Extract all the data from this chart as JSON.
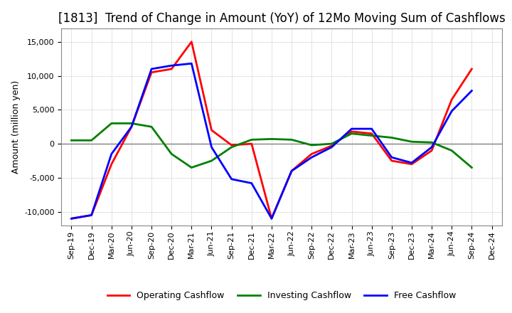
{
  "title": "[1813]  Trend of Change in Amount (YoY) of 12Mo Moving Sum of Cashflows",
  "ylabel": "Amount (million yen)",
  "ylim": [
    -12000,
    17000
  ],
  "yticks": [
    -10000,
    -5000,
    0,
    5000,
    10000,
    15000
  ],
  "background_color": "#ffffff",
  "plot_bg_color": "#ffffff",
  "grid_color": "#aaaaaa",
  "dates": [
    "Sep-19",
    "Dec-19",
    "Mar-20",
    "Jun-20",
    "Sep-20",
    "Dec-20",
    "Mar-21",
    "Jun-21",
    "Sep-21",
    "Dec-21",
    "Mar-22",
    "Jun-22",
    "Sep-22",
    "Dec-22",
    "Mar-23",
    "Jun-23",
    "Sep-23",
    "Dec-23",
    "Mar-24",
    "Jun-24",
    "Sep-24",
    "Dec-24"
  ],
  "operating": [
    -11000,
    -10500,
    -3000,
    2500,
    10500,
    11000,
    15000,
    2000,
    -200,
    0,
    -11000,
    -4000,
    -1500,
    -300,
    1800,
    1500,
    -2500,
    -3000,
    -1000,
    6500,
    11000,
    null
  ],
  "investing": [
    500,
    500,
    3000,
    3000,
    2500,
    -1500,
    -3500,
    -2500,
    -500,
    600,
    700,
    600,
    -200,
    0,
    1500,
    1200,
    900,
    300,
    200,
    -1000,
    -3500,
    null
  ],
  "free": [
    -11000,
    -10500,
    -1500,
    2500,
    11000,
    11500,
    11800,
    -500,
    -5200,
    -5800,
    -11000,
    -4000,
    -2000,
    -500,
    2200,
    2200,
    -2000,
    -2800,
    -500,
    4800,
    7800,
    null
  ],
  "op_color": "#ff0000",
  "inv_color": "#008000",
  "free_color": "#0000ff",
  "line_width": 2.0,
  "title_fontsize": 12,
  "tick_fontsize": 8,
  "ylabel_fontsize": 9,
  "legend_labels": [
    "Operating Cashflow",
    "Investing Cashflow",
    "Free Cashflow"
  ]
}
